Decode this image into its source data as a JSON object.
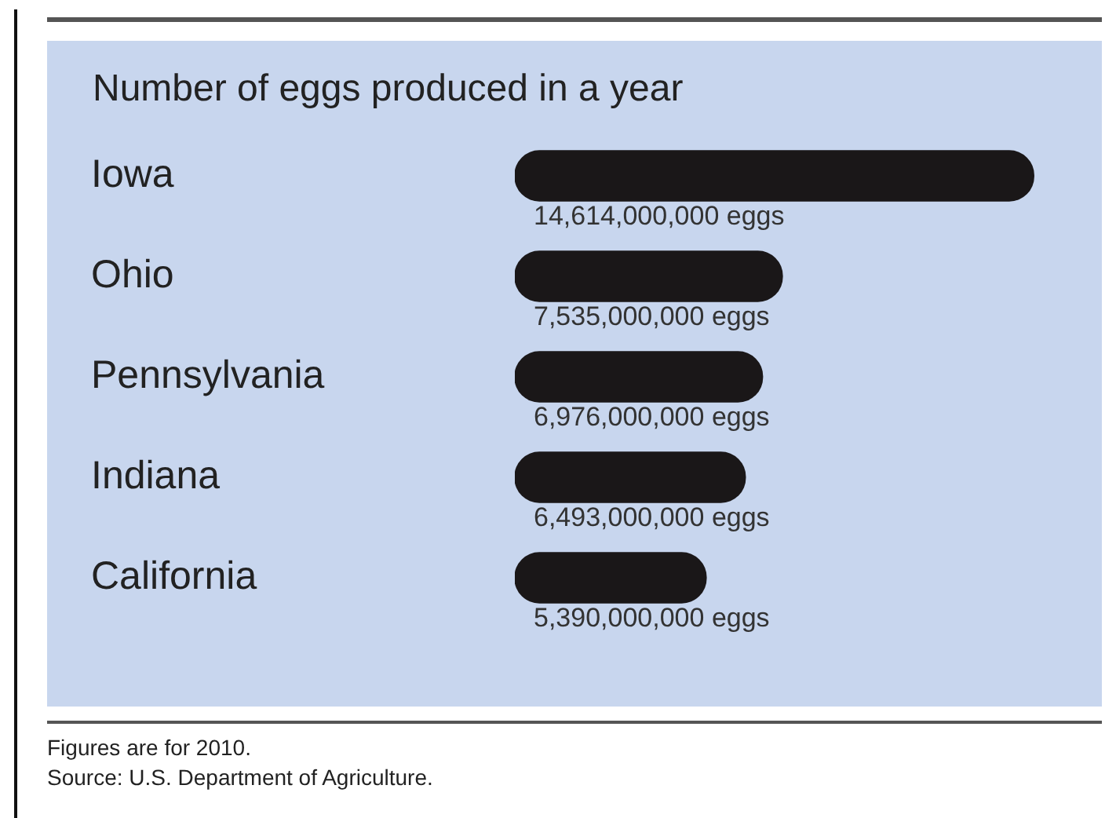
{
  "chart_data": {
    "type": "bar",
    "orientation": "horizontal",
    "title": "Number of eggs produced in a year",
    "categories": [
      "Iowa",
      "Ohio",
      "Pennsylvania",
      "Indiana",
      "California"
    ],
    "values": [
      14614000000,
      7535000000,
      6976000000,
      6493000000,
      5390000000
    ],
    "value_labels": [
      "14,614,000,000 eggs",
      "7,535,000,000 eggs",
      "6,976,000,000 eggs",
      "6,493,000,000 eggs",
      "5,390,000,000 eggs"
    ],
    "color": "#1a1718",
    "tick_labels": "y",
    "annotations": [
      "Figures are for 2010.",
      "Source: U.S. Department of Agriculture."
    ]
  }
}
